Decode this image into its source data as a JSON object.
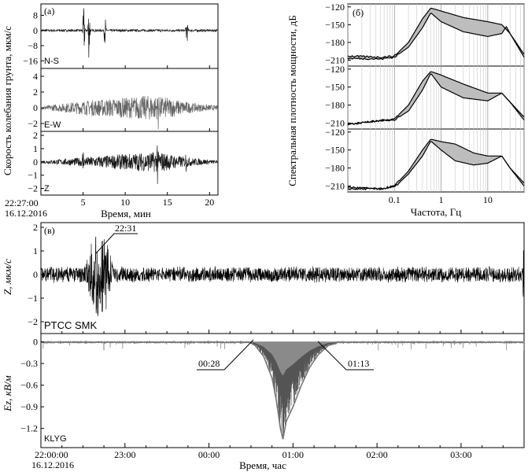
{
  "chart_data": [
    {
      "id": "a",
      "type": "line",
      "panel_label": "(а)",
      "ylabel": "Скорость колебания грунта, мкм/с",
      "xlabel": "Время, мин",
      "x_start_label": [
        "22:27:00",
        "16.12.2016"
      ],
      "x_ticks": [
        "5",
        "10",
        "15",
        "20"
      ],
      "xlim": [
        0,
        21
      ],
      "subplots": [
        {
          "name": "N-S",
          "yticks": [
            "8",
            "0",
            "−8",
            "−16"
          ],
          "ylim": [
            -20,
            14
          ],
          "background": 0.6,
          "bursts": [
            {
              "t": 5.1,
              "amp": 14
            },
            {
              "t": 5.7,
              "amp": 16
            },
            {
              "t": 7.6,
              "amp": 8
            },
            {
              "t": 17.3,
              "amp": 8
            }
          ]
        },
        {
          "name": "E-W",
          "yticks": [
            "4",
            "2",
            "0",
            "−2"
          ],
          "ylim": [
            -3,
            5
          ],
          "envelope": [
            [
              0,
              0.2
            ],
            [
              3,
              0.6
            ],
            [
              6,
              1.0
            ],
            [
              10,
              1.3
            ],
            [
              13,
              1.6
            ],
            [
              15,
              1.3
            ],
            [
              18,
              0.6
            ],
            [
              21,
              0.25
            ]
          ],
          "spikes": [
            {
              "t": 13.9,
              "amp": 3.2
            }
          ]
        },
        {
          "name": "Z",
          "yticks": [
            "2",
            "1",
            "0",
            "−1",
            "−2"
          ],
          "ylim": [
            -2.5,
            2.3
          ],
          "envelope": [
            [
              0,
              0.1
            ],
            [
              3,
              0.25
            ],
            [
              5,
              0.35
            ],
            [
              8,
              0.5
            ],
            [
              12,
              0.7
            ],
            [
              14,
              0.8
            ],
            [
              16,
              0.5
            ],
            [
              18,
              0.3
            ],
            [
              21,
              0.1
            ]
          ],
          "spikes": [
            {
              "t": 5.0,
              "amp": 1.4
            },
            {
              "t": 13.8,
              "amp": 2.3
            },
            {
              "t": 17.2,
              "amp": 1.0
            }
          ]
        }
      ]
    },
    {
      "id": "b",
      "type": "area",
      "panel_label": "(б)",
      "ylabel": "Спектральная плотность мощности, дБ",
      "xlabel": "Частота, Гц",
      "xscale": "log",
      "xlim": [
        0.01,
        60
      ],
      "x_ticks": [
        "0.1",
        "1",
        "10"
      ],
      "subplots": [
        {
          "yticks": [
            "−120",
            "−150",
            "−180",
            "−210"
          ],
          "ylim": [
            -220,
            -115
          ],
          "upper": [
            [
              0.01,
              -203
            ],
            [
              0.05,
              -205
            ],
            [
              0.1,
              -203
            ],
            [
              0.2,
              -180
            ],
            [
              0.4,
              -140
            ],
            [
              0.6,
              -122
            ],
            [
              1,
              -127
            ],
            [
              3,
              -138
            ],
            [
              10,
              -145
            ],
            [
              20,
              -150
            ],
            [
              30,
              -165
            ],
            [
              60,
              -200
            ]
          ],
          "lower": [
            [
              0.01,
              -207
            ],
            [
              0.05,
              -208
            ],
            [
              0.1,
              -205
            ],
            [
              0.2,
              -188
            ],
            [
              0.4,
              -155
            ],
            [
              0.6,
              -130
            ],
            [
              1,
              -145
            ],
            [
              3,
              -162
            ],
            [
              10,
              -170
            ],
            [
              20,
              -165
            ],
            [
              25,
              -153
            ],
            [
              30,
              -165
            ],
            [
              60,
              -205
            ]
          ]
        },
        {
          "yticks": [
            "−120",
            "−150",
            "−180",
            "−210"
          ],
          "ylim": [
            -220,
            -115
          ],
          "upper": [
            [
              0.01,
              -212
            ],
            [
              0.05,
              -206
            ],
            [
              0.1,
              -203
            ],
            [
              0.2,
              -180
            ],
            [
              0.4,
              -140
            ],
            [
              0.6,
              -124
            ],
            [
              1,
              -130
            ],
            [
              3,
              -145
            ],
            [
              10,
              -160
            ],
            [
              20,
              -160
            ],
            [
              30,
              -175
            ],
            [
              60,
              -200
            ]
          ],
          "lower": [
            [
              0.01,
              -212
            ],
            [
              0.05,
              -206
            ],
            [
              0.1,
              -205
            ],
            [
              0.2,
              -190
            ],
            [
              0.4,
              -155
            ],
            [
              0.6,
              -127
            ],
            [
              1,
              -150
            ],
            [
              3,
              -168
            ],
            [
              10,
              -173
            ],
            [
              20,
              -160
            ],
            [
              30,
              -175
            ],
            [
              60,
              -205
            ]
          ]
        },
        {
          "yticks": [
            "−120",
            "−150",
            "−180",
            "−210"
          ],
          "ylim": [
            -220,
            -115
          ],
          "upper": [
            [
              0.01,
              -212
            ],
            [
              0.05,
              -215
            ],
            [
              0.1,
              -210
            ],
            [
              0.2,
              -185
            ],
            [
              0.4,
              -150
            ],
            [
              0.6,
              -132
            ],
            [
              1,
              -136
            ],
            [
              2,
              -140
            ],
            [
              5,
              -155
            ],
            [
              10,
              -160
            ],
            [
              20,
              -160
            ],
            [
              30,
              -180
            ],
            [
              60,
              -205
            ]
          ],
          "lower": [
            [
              0.01,
              -215
            ],
            [
              0.05,
              -215
            ],
            [
              0.1,
              -212
            ],
            [
              0.2,
              -190
            ],
            [
              0.4,
              -160
            ],
            [
              0.6,
              -135
            ],
            [
              1,
              -150
            ],
            [
              2,
              -168
            ],
            [
              5,
              -175
            ],
            [
              10,
              -172
            ],
            [
              20,
              -160
            ],
            [
              30,
              -180
            ],
            [
              60,
              -210
            ]
          ]
        }
      ]
    },
    {
      "id": "v",
      "type": "line",
      "panel_label": "(в)",
      "ylabel": "Z, мкм/с",
      "station": "PTCC SMK",
      "yticks": [
        "2",
        "1",
        "0",
        "−1",
        "−2"
      ],
      "ylim": [
        -2.5,
        2.2
      ],
      "annotation": "22:31",
      "background": 0.3,
      "bursts": [
        {
          "t": 0.65,
          "amp": 2.2
        },
        {
          "t": 0.75,
          "amp": 2.0
        },
        {
          "t": 5.75,
          "amp": 1.6
        }
      ]
    },
    {
      "id": "ez",
      "type": "area",
      "ylabel": "Ez, кВ/м",
      "station": "KLYG",
      "yticks": [
        "0",
        "−0.3",
        "−0.6",
        "−0.9",
        "−1.2"
      ],
      "ylim": [
        -1.4,
        0.05
      ],
      "annotations": [
        "00:28",
        "01:13"
      ],
      "profile": [
        [
          2.47,
          0
        ],
        [
          2.55,
          -0.05
        ],
        [
          2.65,
          -0.2
        ],
        [
          2.75,
          -0.5
        ],
        [
          2.8,
          -0.8
        ],
        [
          2.85,
          -1.2
        ],
        [
          2.88,
          -1.35
        ],
        [
          2.92,
          -1.1
        ],
        [
          3.0,
          -0.9
        ],
        [
          3.1,
          -0.6
        ],
        [
          3.2,
          -0.35
        ],
        [
          3.3,
          -0.18
        ],
        [
          3.42,
          -0.05
        ],
        [
          3.52,
          -0.02
        ]
      ]
    }
  ],
  "bottom_axis": {
    "x_start_label": [
      "22:00:00",
      "16.12.2016"
    ],
    "x_ticks": [
      "23:00",
      "00:00",
      "01:00",
      "02:00",
      "03:00"
    ],
    "xlabel": "Время, час",
    "xlim": [
      22.0,
      27.75
    ]
  }
}
